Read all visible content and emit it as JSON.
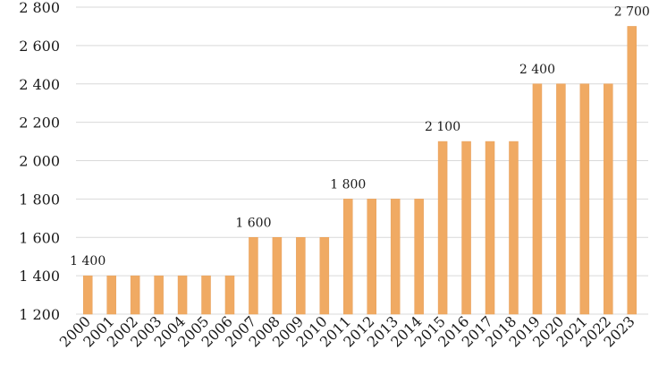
{
  "chart_data": {
    "type": "bar",
    "title": "",
    "xlabel": "",
    "ylabel": "",
    "categories": [
      "2000",
      "2001",
      "2002",
      "2003",
      "2004",
      "2005",
      "2006",
      "2007",
      "2008",
      "2009",
      "2010",
      "2011",
      "2012",
      "2013",
      "2014",
      "2015",
      "2016",
      "2017",
      "2018",
      "2019",
      "2020",
      "2021",
      "2022",
      "2023"
    ],
    "values": [
      1400,
      1400,
      1400,
      1400,
      1400,
      1400,
      1400,
      1600,
      1600,
      1600,
      1600,
      1800,
      1800,
      1800,
      1800,
      2100,
      2100,
      2100,
      2100,
      2400,
      2400,
      2400,
      2400,
      2700
    ],
    "ylim": [
      1200,
      2800
    ],
    "yticks": [
      1200,
      1400,
      1600,
      1800,
      2000,
      2200,
      2400,
      2600,
      2800
    ],
    "ytick_labels": [
      "1 200",
      "1 400",
      "1 600",
      "1 800",
      "2 000",
      "2 200",
      "2 400",
      "2 600",
      "2 800"
    ],
    "data_labels": [
      {
        "index": 0,
        "text": "1 400"
      },
      {
        "index": 7,
        "text": "1 600"
      },
      {
        "index": 11,
        "text": "1 800"
      },
      {
        "index": 15,
        "text": "2 100"
      },
      {
        "index": 19,
        "text": "2 400"
      },
      {
        "index": 23,
        "text": "2 700"
      }
    ],
    "grid": true,
    "legend": "none",
    "colors": {
      "bar": "#f0aa63",
      "bar_edge": "#e8a05a",
      "grid": "#d9d9d9",
      "text": "#1a1a1a"
    }
  }
}
